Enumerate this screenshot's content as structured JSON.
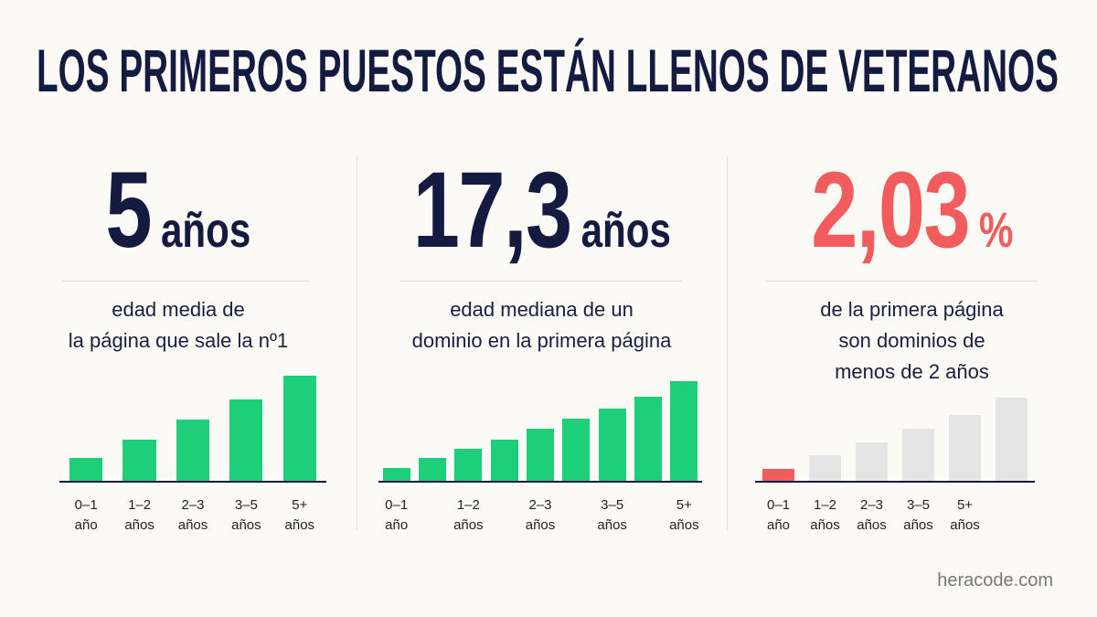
{
  "title": "LOS PRIMEROS PUESTOS ESTÁN LLENOS DE VETERANOS",
  "footer": "heracode.com",
  "chart_data": [
    {
      "type": "bar",
      "headline": "5",
      "headline_unit": "años",
      "headline_color": "#141a40",
      "caption": [
        "edad media de",
        "la página que sale la nº1"
      ],
      "categories": [
        "0–1 año",
        "1–2 años",
        "2–3 años",
        "3–5 años",
        "5+ años"
      ],
      "values": [
        26,
        46,
        68,
        90,
        116
      ],
      "colors": [
        "#1ecf7a",
        "#1ecf7a",
        "#1ecf7a",
        "#1ecf7a",
        "#1ecf7a"
      ],
      "ylim": [
        0,
        120
      ]
    },
    {
      "type": "bar",
      "headline": "17,3",
      "headline_unit": "años",
      "headline_color": "#141a40",
      "caption": [
        "edad mediana de un",
        "dominio en la primera página"
      ],
      "categories": [
        "0–1 año",
        null,
        "1–2 años",
        null,
        "2–3 años",
        null,
        "3–5 años",
        null,
        "5+ años"
      ],
      "values": [
        15,
        26,
        36,
        46,
        58,
        69,
        80,
        93,
        110
      ],
      "colors": [
        "#1ecf7a",
        "#1ecf7a",
        "#1ecf7a",
        "#1ecf7a",
        "#1ecf7a",
        "#1ecf7a",
        "#1ecf7a",
        "#1ecf7a",
        "#1ecf7a"
      ],
      "ylim": [
        0,
        120
      ]
    },
    {
      "type": "bar",
      "headline": "2,03",
      "headline_unit": "%",
      "headline_color": "#f25c5c",
      "caption": [
        "de la primera página",
        "son dominios de",
        "menos de 2 años"
      ],
      "categories": [
        "0–1 año",
        "1–2 años",
        "2–3 años",
        "3–5 años",
        "5+ años",
        null
      ],
      "values": [
        14,
        29,
        43,
        58,
        73,
        92
      ],
      "colors": [
        "#f25c5c",
        "#e5e5e5",
        "#e5e5e5",
        "#e5e5e5",
        "#e5e5e5",
        "#e5e5e5"
      ],
      "ylim": [
        0,
        120
      ]
    }
  ]
}
